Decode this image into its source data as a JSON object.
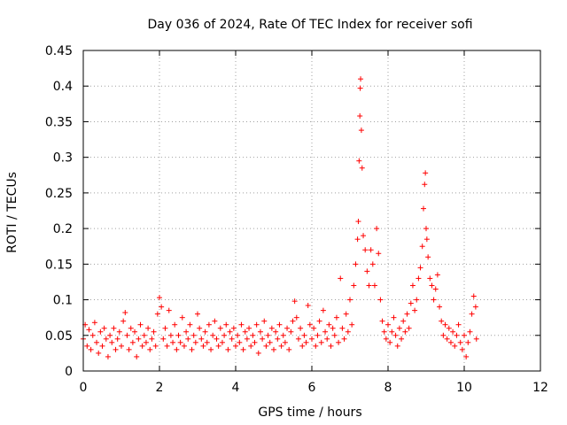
{
  "chart_data": {
    "type": "scatter",
    "title": "Day 036 of 2024, Rate Of TEC Index for receiver sofi",
    "xlabel": "GPS time / hours",
    "ylabel": "ROTI / TECUs",
    "xlim": [
      0,
      12
    ],
    "ylim": [
      0,
      0.45
    ],
    "xticks": [
      0,
      2,
      4,
      6,
      8,
      10,
      12
    ],
    "yticks": [
      0,
      0.05,
      0.1,
      0.15,
      0.2,
      0.25,
      0.3,
      0.35,
      0.4,
      0.45
    ],
    "ytick_labels": [
      "0",
      "0.05",
      "0.1",
      "0.15",
      "0.2",
      "0.25",
      "0.3",
      "0.35",
      "0.4",
      "0.45"
    ],
    "grid": true,
    "marker": "+",
    "color": "#ff0000",
    "series": [
      {
        "name": "sofi",
        "points": [
          [
            0.0,
            0.045
          ],
          [
            0.05,
            0.065
          ],
          [
            0.1,
            0.035
          ],
          [
            0.15,
            0.058
          ],
          [
            0.2,
            0.03
          ],
          [
            0.25,
            0.05
          ],
          [
            0.3,
            0.068
          ],
          [
            0.35,
            0.04
          ],
          [
            0.4,
            0.025
          ],
          [
            0.45,
            0.055
          ],
          [
            0.5,
            0.035
          ],
          [
            0.55,
            0.06
          ],
          [
            0.6,
            0.045
          ],
          [
            0.65,
            0.02
          ],
          [
            0.7,
            0.05
          ],
          [
            0.75,
            0.04
          ],
          [
            0.8,
            0.06
          ],
          [
            0.85,
            0.03
          ],
          [
            0.9,
            0.045
          ],
          [
            0.95,
            0.055
          ],
          [
            1.0,
            0.035
          ],
          [
            1.05,
            0.07
          ],
          [
            1.1,
            0.082
          ],
          [
            1.15,
            0.05
          ],
          [
            1.2,
            0.03
          ],
          [
            1.25,
            0.06
          ],
          [
            1.3,
            0.04
          ],
          [
            1.35,
            0.055
          ],
          [
            1.4,
            0.02
          ],
          [
            1.45,
            0.045
          ],
          [
            1.5,
            0.065
          ],
          [
            1.55,
            0.035
          ],
          [
            1.6,
            0.05
          ],
          [
            1.65,
            0.04
          ],
          [
            1.7,
            0.06
          ],
          [
            1.75,
            0.03
          ],
          [
            1.8,
            0.045
          ],
          [
            1.85,
            0.055
          ],
          [
            1.9,
            0.035
          ],
          [
            1.95,
            0.08
          ],
          [
            2.0,
            0.103
          ],
          [
            2.05,
            0.09
          ],
          [
            2.1,
            0.045
          ],
          [
            2.15,
            0.06
          ],
          [
            2.2,
            0.035
          ],
          [
            2.25,
            0.085
          ],
          [
            2.3,
            0.05
          ],
          [
            2.35,
            0.04
          ],
          [
            2.4,
            0.065
          ],
          [
            2.45,
            0.03
          ],
          [
            2.5,
            0.05
          ],
          [
            2.55,
            0.04
          ],
          [
            2.6,
            0.075
          ],
          [
            2.65,
            0.035
          ],
          [
            2.7,
            0.055
          ],
          [
            2.75,
            0.045
          ],
          [
            2.8,
            0.065
          ],
          [
            2.85,
            0.03
          ],
          [
            2.9,
            0.05
          ],
          [
            2.95,
            0.04
          ],
          [
            3.0,
            0.08
          ],
          [
            3.05,
            0.06
          ],
          [
            3.1,
            0.045
          ],
          [
            3.15,
            0.035
          ],
          [
            3.2,
            0.055
          ],
          [
            3.25,
            0.04
          ],
          [
            3.3,
            0.065
          ],
          [
            3.35,
            0.03
          ],
          [
            3.4,
            0.05
          ],
          [
            3.45,
            0.07
          ],
          [
            3.5,
            0.045
          ],
          [
            3.55,
            0.035
          ],
          [
            3.6,
            0.06
          ],
          [
            3.65,
            0.04
          ],
          [
            3.7,
            0.05
          ],
          [
            3.75,
            0.065
          ],
          [
            3.8,
            0.03
          ],
          [
            3.85,
            0.055
          ],
          [
            3.9,
            0.045
          ],
          [
            3.95,
            0.06
          ],
          [
            4.0,
            0.035
          ],
          [
            4.05,
            0.05
          ],
          [
            4.1,
            0.04
          ],
          [
            4.15,
            0.065
          ],
          [
            4.2,
            0.03
          ],
          [
            4.25,
            0.055
          ],
          [
            4.3,
            0.045
          ],
          [
            4.35,
            0.06
          ],
          [
            4.4,
            0.035
          ],
          [
            4.45,
            0.05
          ],
          [
            4.5,
            0.04
          ],
          [
            4.55,
            0.065
          ],
          [
            4.6,
            0.025
          ],
          [
            4.65,
            0.055
          ],
          [
            4.7,
            0.045
          ],
          [
            4.75,
            0.07
          ],
          [
            4.8,
            0.035
          ],
          [
            4.85,
            0.05
          ],
          [
            4.9,
            0.04
          ],
          [
            4.95,
            0.06
          ],
          [
            5.0,
            0.03
          ],
          [
            5.05,
            0.055
          ],
          [
            5.1,
            0.045
          ],
          [
            5.15,
            0.065
          ],
          [
            5.2,
            0.035
          ],
          [
            5.25,
            0.05
          ],
          [
            5.3,
            0.04
          ],
          [
            5.35,
            0.06
          ],
          [
            5.4,
            0.03
          ],
          [
            5.45,
            0.055
          ],
          [
            5.5,
            0.07
          ],
          [
            5.55,
            0.098
          ],
          [
            5.6,
            0.075
          ],
          [
            5.65,
            0.045
          ],
          [
            5.7,
            0.06
          ],
          [
            5.75,
            0.035
          ],
          [
            5.8,
            0.05
          ],
          [
            5.85,
            0.04
          ],
          [
            5.9,
            0.092
          ],
          [
            5.95,
            0.065
          ],
          [
            6.0,
            0.045
          ],
          [
            6.05,
            0.06
          ],
          [
            6.1,
            0.035
          ],
          [
            6.15,
            0.05
          ],
          [
            6.2,
            0.07
          ],
          [
            6.25,
            0.04
          ],
          [
            6.3,
            0.085
          ],
          [
            6.35,
            0.055
          ],
          [
            6.4,
            0.045
          ],
          [
            6.45,
            0.065
          ],
          [
            6.5,
            0.035
          ],
          [
            6.55,
            0.06
          ],
          [
            6.6,
            0.05
          ],
          [
            6.65,
            0.075
          ],
          [
            6.7,
            0.04
          ],
          [
            6.75,
            0.13
          ],
          [
            6.8,
            0.06
          ],
          [
            6.85,
            0.045
          ],
          [
            6.9,
            0.08
          ],
          [
            6.95,
            0.055
          ],
          [
            7.0,
            0.1
          ],
          [
            7.05,
            0.065
          ],
          [
            7.1,
            0.12
          ],
          [
            7.15,
            0.15
          ],
          [
            7.2,
            0.185
          ],
          [
            7.22,
            0.21
          ],
          [
            7.24,
            0.295
          ],
          [
            7.26,
            0.358
          ],
          [
            7.27,
            0.397
          ],
          [
            7.28,
            0.41
          ],
          [
            7.3,
            0.338
          ],
          [
            7.32,
            0.285
          ],
          [
            7.35,
            0.19
          ],
          [
            7.4,
            0.17
          ],
          [
            7.45,
            0.14
          ],
          [
            7.5,
            0.12
          ],
          [
            7.55,
            0.17
          ],
          [
            7.6,
            0.15
          ],
          [
            7.65,
            0.12
          ],
          [
            7.7,
            0.2
          ],
          [
            7.75,
            0.165
          ],
          [
            7.8,
            0.1
          ],
          [
            7.85,
            0.07
          ],
          [
            7.9,
            0.055
          ],
          [
            7.95,
            0.045
          ],
          [
            8.0,
            0.065
          ],
          [
            8.05,
            0.04
          ],
          [
            8.1,
            0.055
          ],
          [
            8.15,
            0.075
          ],
          [
            8.2,
            0.05
          ],
          [
            8.25,
            0.035
          ],
          [
            8.3,
            0.06
          ],
          [
            8.35,
            0.045
          ],
          [
            8.4,
            0.07
          ],
          [
            8.45,
            0.055
          ],
          [
            8.5,
            0.08
          ],
          [
            8.55,
            0.06
          ],
          [
            8.6,
            0.095
          ],
          [
            8.65,
            0.12
          ],
          [
            8.7,
            0.085
          ],
          [
            8.75,
            0.1
          ],
          [
            8.8,
            0.13
          ],
          [
            8.85,
            0.145
          ],
          [
            8.9,
            0.175
          ],
          [
            8.93,
            0.228
          ],
          [
            8.96,
            0.262
          ],
          [
            8.98,
            0.278
          ],
          [
            9.0,
            0.2
          ],
          [
            9.02,
            0.185
          ],
          [
            9.05,
            0.16
          ],
          [
            9.1,
            0.13
          ],
          [
            9.15,
            0.12
          ],
          [
            9.2,
            0.1
          ],
          [
            9.25,
            0.115
          ],
          [
            9.3,
            0.135
          ],
          [
            9.35,
            0.09
          ],
          [
            9.4,
            0.07
          ],
          [
            9.45,
            0.05
          ],
          [
            9.5,
            0.065
          ],
          [
            9.55,
            0.045
          ],
          [
            9.6,
            0.06
          ],
          [
            9.65,
            0.04
          ],
          [
            9.7,
            0.055
          ],
          [
            9.75,
            0.035
          ],
          [
            9.8,
            0.05
          ],
          [
            9.85,
            0.065
          ],
          [
            9.9,
            0.04
          ],
          [
            9.95,
            0.03
          ],
          [
            10.0,
            0.05
          ],
          [
            10.05,
            0.02
          ],
          [
            10.1,
            0.04
          ],
          [
            10.15,
            0.055
          ],
          [
            10.2,
            0.08
          ],
          [
            10.25,
            0.105
          ],
          [
            10.3,
            0.09
          ],
          [
            10.32,
            0.045
          ]
        ]
      }
    ]
  }
}
